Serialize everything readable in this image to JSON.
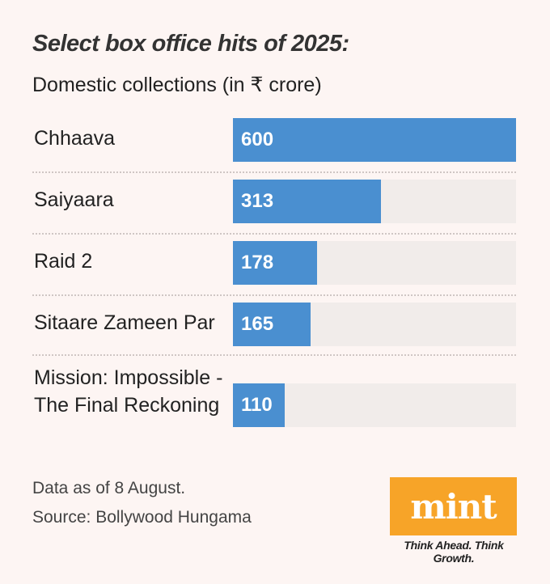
{
  "chart_data": {
    "type": "bar",
    "orientation": "horizontal",
    "title": "Select box office hits of 2025:",
    "subtitle": "Domestic collections (in ₹ crore)",
    "categories": [
      "Chhaava",
      "Saiyaara",
      "Raid 2",
      "Sitaare Zameen Par",
      "Mission: Impossible - The Final Reckoning"
    ],
    "values": [
      600,
      313,
      178,
      165,
      110
    ],
    "xlim": [
      0,
      600
    ],
    "bar_color": "#4a8fd0",
    "track_color": "#f1ecea"
  },
  "footnotes": {
    "data_note": "Data as of 8 August.",
    "source": "Source: Bollywood Hungama"
  },
  "logo": {
    "word": "mint",
    "tagline": "Think Ahead. Think Growth.",
    "color": "#f7a428"
  }
}
